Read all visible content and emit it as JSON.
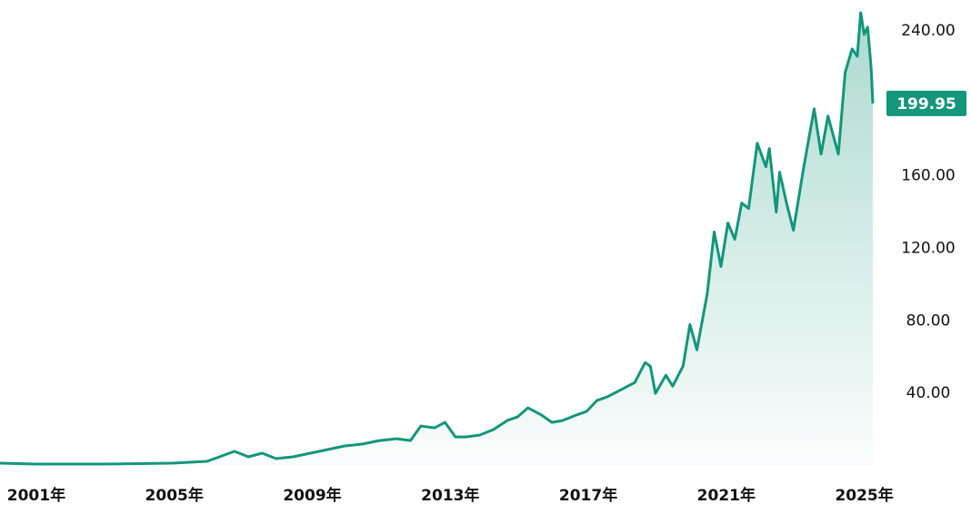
{
  "chart_data": {
    "type": "area",
    "color": "#13967a",
    "x": [
      2000.0,
      2001,
      2003,
      2005,
      2006,
      2006.8,
      2007.2,
      2007.6,
      2008.0,
      2008.5,
      2009.0,
      2009.5,
      2010.0,
      2010.5,
      2011.0,
      2011.5,
      2011.9,
      2012.2,
      2012.6,
      2012.9,
      2013.2,
      2013.5,
      2013.9,
      2014.3,
      2014.7,
      2015.0,
      2015.3,
      2015.7,
      2016.0,
      2016.3,
      2016.7,
      2017.0,
      2017.3,
      2017.6,
      2018.0,
      2018.4,
      2018.7,
      2018.85,
      2019.0,
      2019.3,
      2019.5,
      2019.8,
      2020.0,
      2020.2,
      2020.5,
      2020.7,
      2020.9,
      2021.1,
      2021.3,
      2021.5,
      2021.7,
      2021.95,
      2022.2,
      2022.3,
      2022.5,
      2022.6,
      2022.8,
      2023.0,
      2023.3,
      2023.6,
      2023.8,
      2024.0,
      2024.3,
      2024.5,
      2024.7,
      2024.85,
      2024.95,
      2025.05,
      2025.15,
      2025.25,
      2025.3
    ],
    "values": [
      1.5,
      1,
      1,
      1.5,
      2.5,
      8,
      5,
      7,
      4,
      5,
      7,
      9,
      11,
      12,
      14,
      15,
      14,
      22,
      21,
      24,
      16,
      16,
      17,
      20,
      25,
      27,
      32,
      28,
      24,
      25,
      28,
      30,
      36,
      38,
      42,
      46,
      57,
      55,
      40,
      50,
      44,
      55,
      78,
      64,
      95,
      129,
      110,
      134,
      125,
      145,
      142,
      178,
      165,
      175,
      140,
      162,
      145,
      130,
      165,
      197,
      172,
      193,
      172,
      217,
      230,
      226,
      250,
      238,
      242,
      220,
      199.95
    ],
    "last_price": 199.95,
    "xlim": [
      2000,
      2025.3
    ],
    "xticks": [
      {
        "value": 2001,
        "label": "2001年"
      },
      {
        "value": 2005,
        "label": "2005年"
      },
      {
        "value": 2009,
        "label": "2009年"
      },
      {
        "value": 2013,
        "label": "2013年"
      },
      {
        "value": 2017,
        "label": "2017年"
      },
      {
        "value": 2021,
        "label": "2021年"
      },
      {
        "value": 2025,
        "label": "2025年"
      }
    ],
    "ylim": [
      0,
      257
    ],
    "yticks": [
      {
        "value": 40,
        "label": "40.00"
      },
      {
        "value": 80,
        "label": "80.00"
      },
      {
        "value": 120,
        "label": "120.00"
      },
      {
        "value": 160,
        "label": "160.00"
      },
      {
        "value": 240,
        "label": "240.00"
      }
    ]
  }
}
